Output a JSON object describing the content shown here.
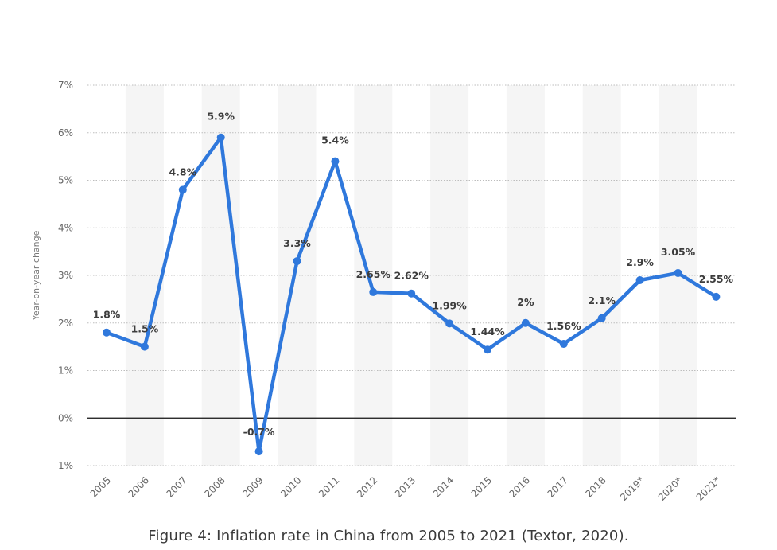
{
  "caption": "Figure 4: Inflation rate in China from 2005 to 2021 (Textor, 2020).",
  "chart_data": {
    "type": "line",
    "ylabel": "Year-on-year change",
    "xlabel": "",
    "ylim": [
      -1,
      7
    ],
    "yticks": [
      -1,
      0,
      1,
      2,
      3,
      4,
      5,
      6,
      7
    ],
    "ytick_labels": [
      "-1%",
      "0%",
      "1%",
      "2%",
      "3%",
      "4%",
      "5%",
      "6%",
      "7%"
    ],
    "grid": "horizontal dotted",
    "categories": [
      "2005",
      "2006",
      "2007",
      "2008",
      "2009",
      "2010",
      "2011",
      "2012",
      "2013",
      "2014",
      "2015",
      "2016",
      "2017",
      "2018",
      "2019*",
      "2020*",
      "2021*"
    ],
    "series": [
      {
        "values": [
          1.8,
          1.5,
          4.8,
          5.9,
          -0.7,
          3.3,
          5.4,
          2.65,
          2.62,
          1.99,
          1.44,
          2,
          1.56,
          2.1,
          2.9,
          3.05,
          2.55
        ],
        "labels": [
          "1.8%",
          "1.5%",
          "4.8%",
          "5.9%",
          "-0.7%",
          "3.3%",
          "5.4%",
          "2.65%",
          "2.62%",
          "1.99%",
          "1.44%",
          "2%",
          "1.56%",
          "2.1%",
          "2.9%",
          "3.05%",
          "2.55%"
        ],
        "color": "#2f78dc"
      }
    ],
    "zero_line_color": "#111111",
    "band_color": "#f5f5f5",
    "grid_color": "#bdbdbd"
  }
}
